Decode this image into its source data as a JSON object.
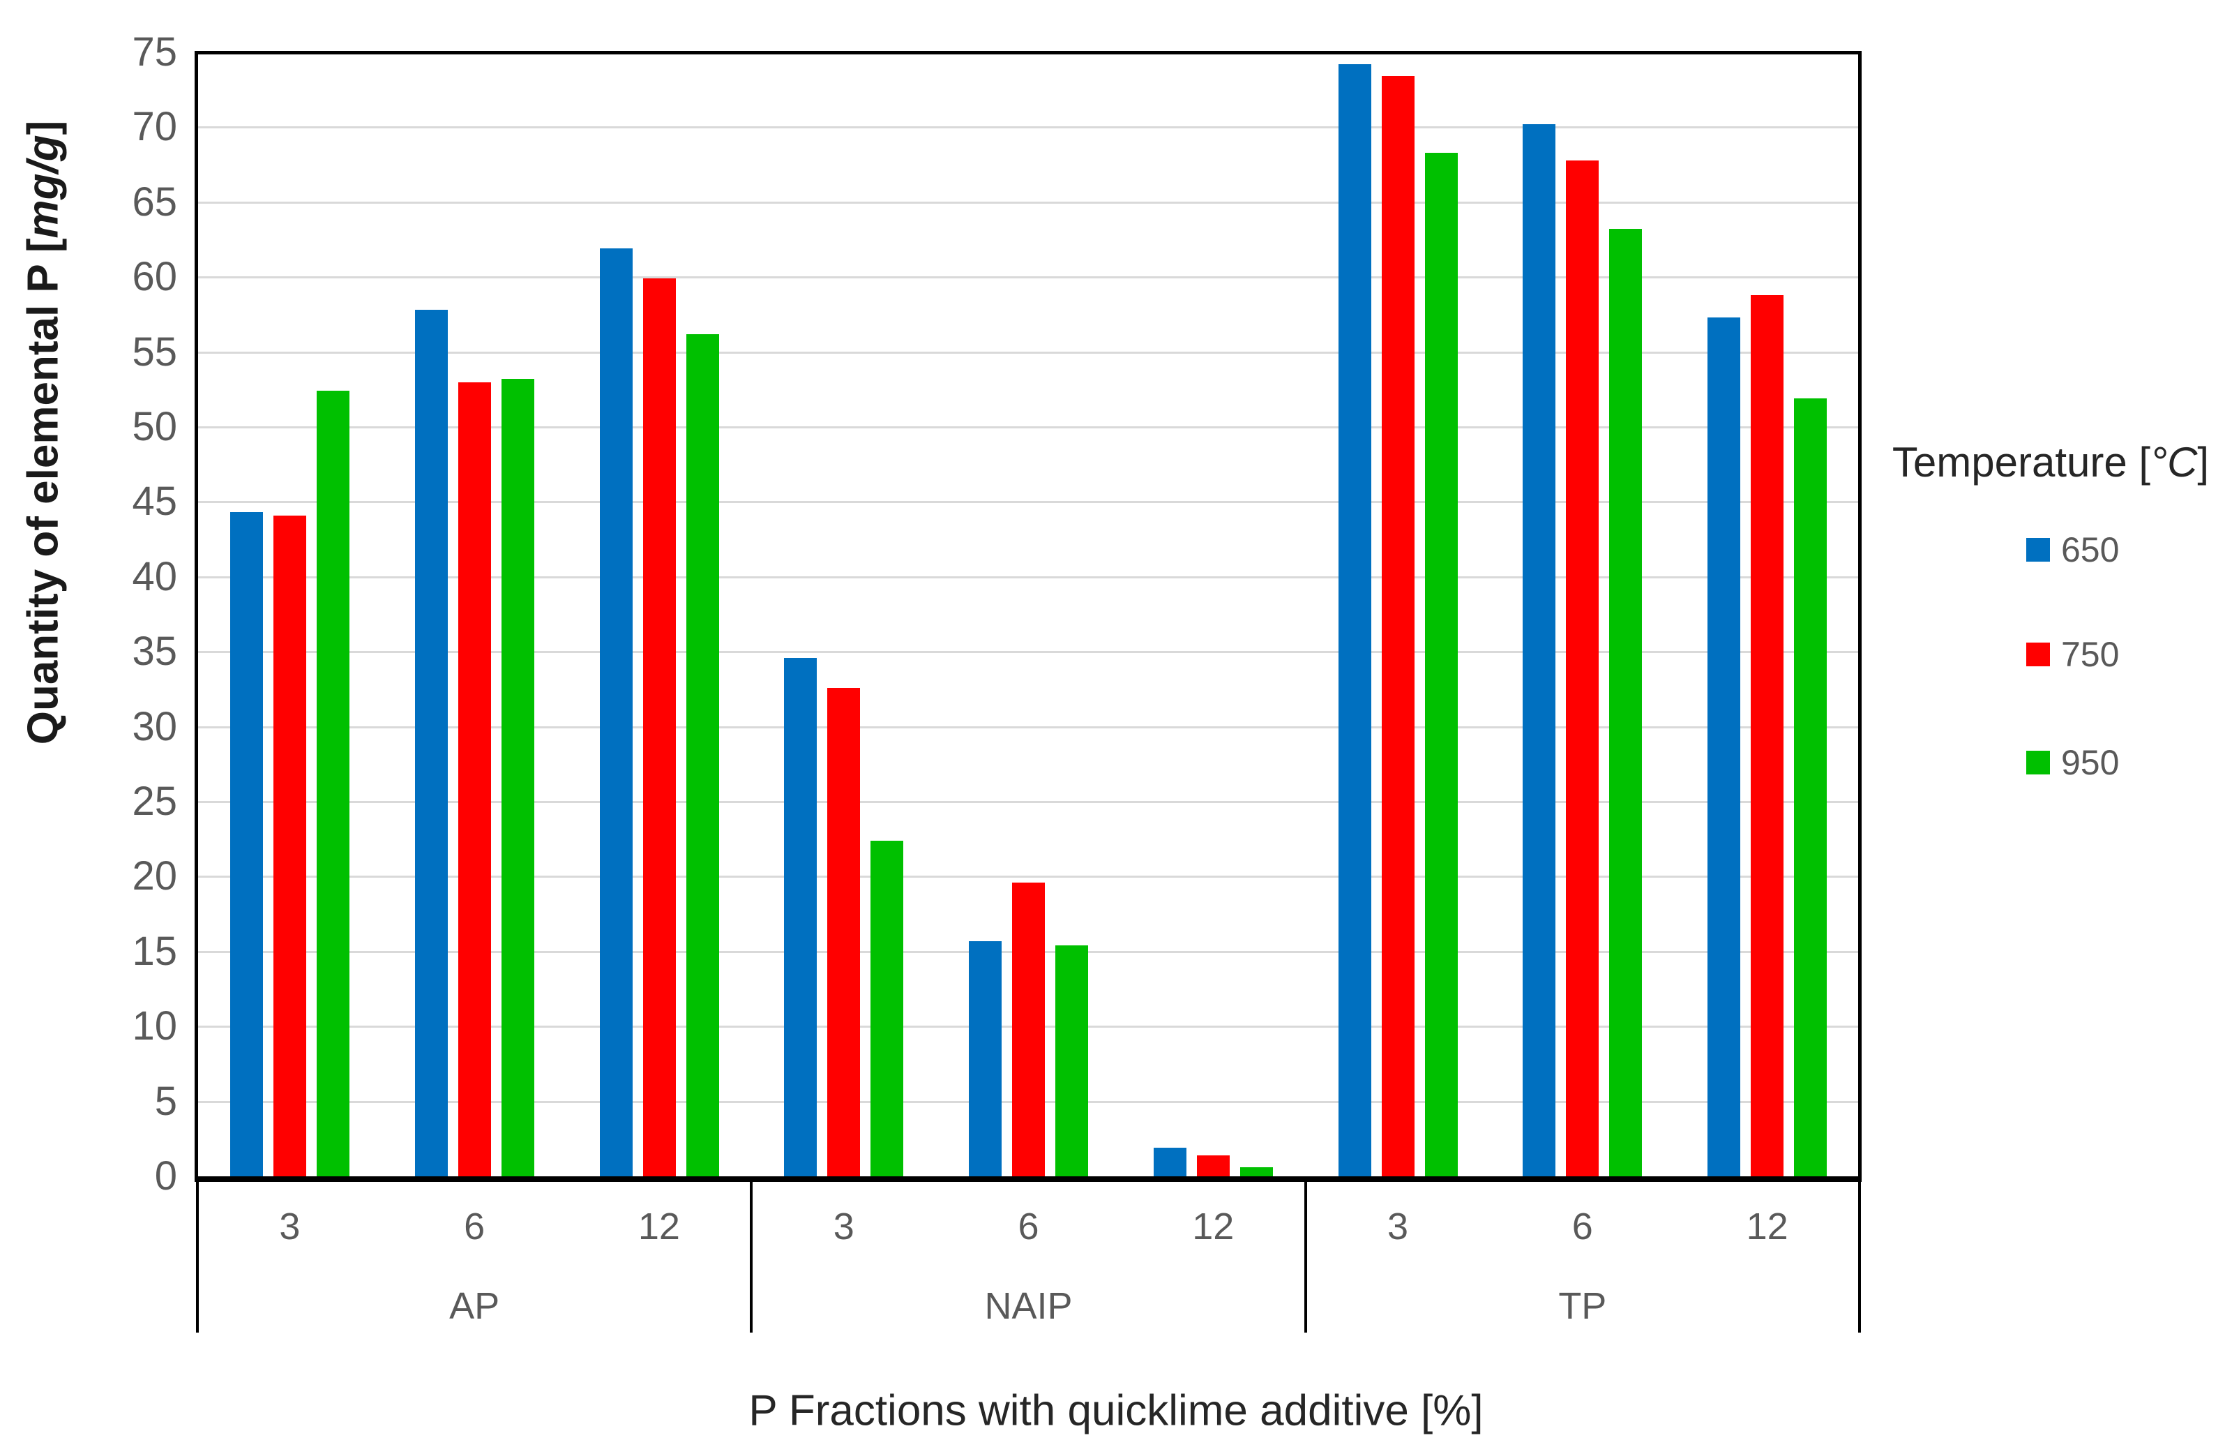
{
  "chart_data": {
    "type": "bar",
    "title": "",
    "x_axis_title": "P Fractions with quicklime additive [%]",
    "y_axis_title": {
      "prefix": "Quantity of elemental P [",
      "italic": "mg/g",
      "suffix": "]"
    },
    "legend_title": {
      "prefix": "Temperature [",
      "italic": "°C",
      "suffix": "]"
    },
    "legend_position": "right",
    "grid": true,
    "ylim": [
      0,
      75
    ],
    "ytick_step": 5,
    "yticks": [
      0,
      5,
      10,
      15,
      20,
      25,
      30,
      35,
      40,
      45,
      50,
      55,
      60,
      65,
      70,
      75
    ],
    "groups": [
      {
        "label": "AP",
        "categories": [
          "3",
          "6",
          "12"
        ]
      },
      {
        "label": "NAIP",
        "categories": [
          "3",
          "6",
          "12"
        ]
      },
      {
        "label": "TP",
        "categories": [
          "3",
          "6",
          "12"
        ]
      }
    ],
    "category_order": [
      "AP-3",
      "AP-6",
      "AP-12",
      "NAIP-3",
      "NAIP-6",
      "NAIP-12",
      "TP-3",
      "TP-6",
      "TP-12"
    ],
    "series": [
      {
        "name": "650",
        "color": "#0070C0",
        "values": [
          44.3,
          57.8,
          61.9,
          34.6,
          15.7,
          1.9,
          74.2,
          70.2,
          57.3
        ]
      },
      {
        "name": "750",
        "color": "#FF0000",
        "values": [
          44.1,
          53.0,
          59.9,
          32.6,
          19.6,
          1.4,
          73.4,
          67.8,
          58.8
        ]
      },
      {
        "name": "950",
        "color": "#00C000",
        "values": [
          52.4,
          53.2,
          56.2,
          22.4,
          15.4,
          0.6,
          68.3,
          63.2,
          51.9
        ]
      }
    ],
    "colors": {
      "axis_line": "#000000",
      "gridline": "#D9D9D9",
      "tick_text": "#595959",
      "title_text": "#262626"
    }
  }
}
